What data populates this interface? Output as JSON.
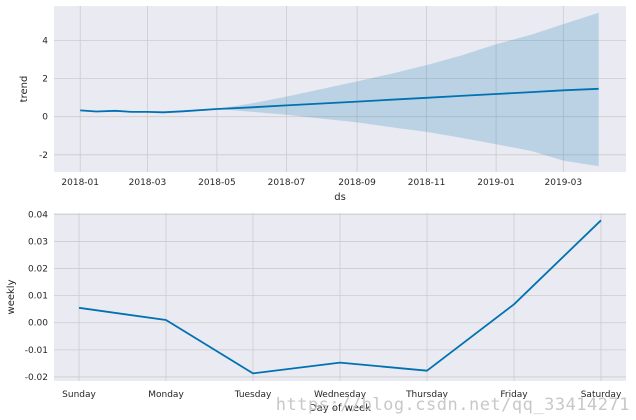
{
  "chart_data": [
    {
      "type": "line",
      "xlabel": "ds",
      "ylabel": "trend",
      "x_tick_labels": [
        "2018-01",
        "2018-03",
        "2018-05",
        "2018-07",
        "2018-09",
        "2018-11",
        "2019-01",
        "2019-03"
      ],
      "y_tick_labels": [
        "-2",
        "0",
        "2",
        "4"
      ],
      "x_ticks": [
        "2018-01-01",
        "2018-03-01",
        "2018-05-01",
        "2018-07-01",
        "2018-09-01",
        "2018-11-01",
        "2019-01-01",
        "2019-03-01"
      ],
      "y_ticks": [
        -2,
        0,
        2,
        4
      ],
      "xlim": [
        "2017-12-09",
        "2019-04-25"
      ],
      "ylim": [
        -2.9,
        5.8
      ],
      "grid": true,
      "series": [
        {
          "color": "#0072B2",
          "x": [
            "2018-01-01",
            "2018-01-15",
            "2018-02-01",
            "2018-02-15",
            "2018-03-01",
            "2018-03-15",
            "2018-04-01",
            "2018-05-01",
            "2018-06-01",
            "2018-07-01",
            "2018-08-01",
            "2018-09-01",
            "2018-10-01",
            "2018-11-01",
            "2018-12-01",
            "2019-01-01",
            "2019-02-01",
            "2019-03-01",
            "2019-04-01"
          ],
          "y": [
            0.33,
            0.27,
            0.31,
            0.25,
            0.25,
            0.23,
            0.28,
            0.4,
            0.49,
            0.59,
            0.69,
            0.79,
            0.89,
            0.99,
            1.09,
            1.19,
            1.29,
            1.38,
            1.46
          ]
        }
      ],
      "uncertainty_band": {
        "color": "#0072B2",
        "x": [
          "2018-05-01",
          "2018-06-01",
          "2018-07-01",
          "2018-08-01",
          "2018-09-01",
          "2018-10-01",
          "2018-11-01",
          "2018-12-01",
          "2019-01-01",
          "2019-02-01",
          "2019-03-01",
          "2019-04-01"
        ],
        "upper": [
          0.4,
          0.7,
          1.05,
          1.45,
          1.85,
          2.25,
          2.7,
          3.2,
          3.8,
          4.3,
          4.85,
          5.45
        ],
        "lower": [
          0.4,
          0.25,
          0.1,
          -0.1,
          -0.3,
          -0.55,
          -0.8,
          -1.1,
          -1.45,
          -1.8,
          -2.3,
          -2.6
        ]
      }
    },
    {
      "type": "line",
      "xlabel": "Day of week",
      "ylabel": "weekly",
      "categories": [
        "Sunday",
        "Monday",
        "Tuesday",
        "Wednesday",
        "Thursday",
        "Friday",
        "Saturday"
      ],
      "y_tick_labels": [
        "-0.02",
        "-0.01",
        "0.00",
        "0.01",
        "0.02",
        "0.03",
        "0.04"
      ],
      "y_ticks": [
        -0.02,
        -0.01,
        0.0,
        0.01,
        0.02,
        0.03,
        0.04
      ],
      "ylim": [
        -0.0215,
        0.0405
      ],
      "grid": true,
      "series": [
        {
          "color": "#0072B2",
          "values": [
            0.0055,
            0.001,
            -0.0187,
            -0.0147,
            -0.0177,
            0.0068,
            0.0378
          ]
        }
      ]
    }
  ],
  "watermark": "https://blog.csdn.net/qq_33414271"
}
